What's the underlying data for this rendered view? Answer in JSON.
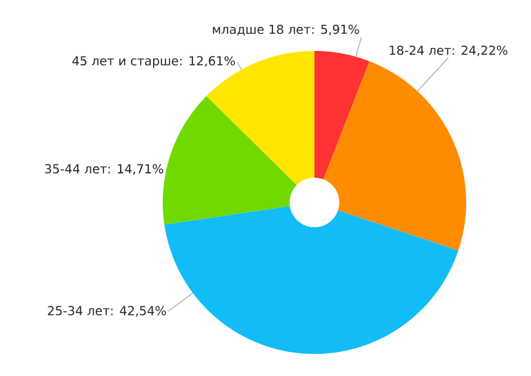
{
  "chart_data": {
    "type": "pie",
    "categories": [
      "младше 18 лет",
      "18-24 лет",
      "25-34 лет",
      "35-44 лет",
      "45 лет и старше"
    ],
    "values": [
      5.91,
      24.22,
      42.54,
      14.71,
      12.61
    ],
    "value_labels": [
      ": 5,91%",
      ": 24,22%",
      ": 42,54%",
      ": 14,71%",
      ": 12,61%"
    ],
    "colors": [
      "#ff3333",
      "#ff8c00",
      "#12bcf6",
      "#6fd900",
      "#ffe600"
    ]
  }
}
